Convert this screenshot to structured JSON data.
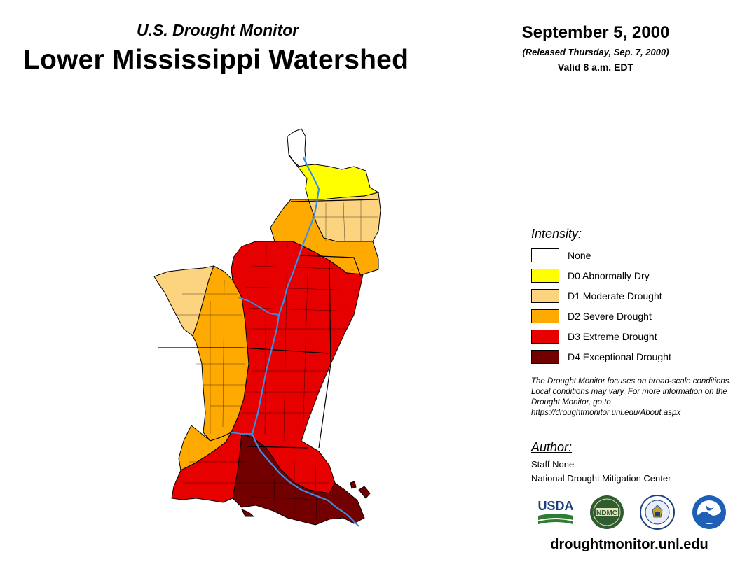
{
  "header": {
    "subtitle": "U.S. Drought Monitor",
    "title": "Lower Mississippi Watershed",
    "date": "September 5, 2000",
    "released": "(Released Thursday, Sep. 7, 2000)",
    "valid": "Valid 8 a.m. EDT"
  },
  "legend": {
    "heading": "Intensity:",
    "items": [
      {
        "label": "None",
        "color": "#ffffff"
      },
      {
        "label": "D0 Abnormally Dry",
        "color": "#ffff00"
      },
      {
        "label": "D1 Moderate Drought",
        "color": "#fcd37f"
      },
      {
        "label": "D2 Severe Drought",
        "color": "#ffaa00"
      },
      {
        "label": "D3 Extreme Drought",
        "color": "#e60000"
      },
      {
        "label": "D4 Exceptional Drought",
        "color": "#730000"
      }
    ]
  },
  "note": "The Drought Monitor focuses on broad-scale conditions. Local conditions may vary. For more information on the Drought Monitor, go to https://droughtmonitor.unl.edu/About.aspx",
  "author": {
    "heading": "Author:",
    "name": "Staff None",
    "organization": "National Drought Mitigation Center"
  },
  "logos": {
    "usda": "USDA",
    "ndmc": "NDMC",
    "noaa": "NOAA"
  },
  "website": "droughtmonitor.unl.edu",
  "colors": {
    "river": "#3a8ee6",
    "border": "#000000"
  }
}
